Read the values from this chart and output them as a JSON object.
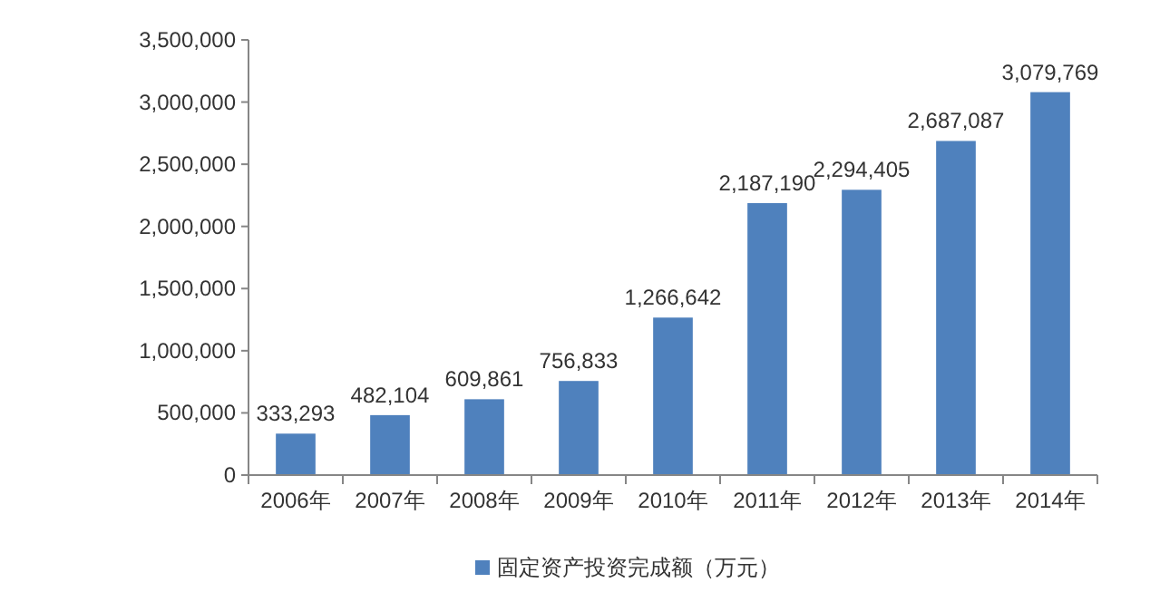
{
  "chart_data": {
    "type": "bar",
    "categories": [
      "2006年",
      "2007年",
      "2008年",
      "2009年",
      "2010年",
      "2011年",
      "2012年",
      "2013年",
      "2014年"
    ],
    "series": [
      {
        "name": "固定资产投资完成额（万元）",
        "color": "#4f81bd",
        "values": [
          333293,
          482104,
          609861,
          756833,
          1266642,
          2187190,
          2294405,
          2687087,
          3079769
        ],
        "value_labels": [
          "333,293",
          "482,104",
          "609,861",
          "756,833",
          "1,266,642",
          "2,187,190",
          "2,294,405",
          "2,687,087",
          "3,079,769"
        ]
      }
    ],
    "ylim": [
      0,
      3500000
    ],
    "yticks": [
      0,
      {
        "value": 500000,
        "label": "500,000"
      },
      {
        "value": 1000000,
        "label": "1,000,000"
      },
      {
        "value": 1500000,
        "label": "1,500,000"
      },
      {
        "value": 2000000,
        "label": "2,000,000"
      },
      {
        "value": 2500000,
        "label": "2,500,000"
      },
      {
        "value": 3000000,
        "label": "3,000,000"
      },
      {
        "value": 3500000,
        "label": "3,500,000"
      }
    ],
    "grid": false,
    "legend": "bottom"
  }
}
